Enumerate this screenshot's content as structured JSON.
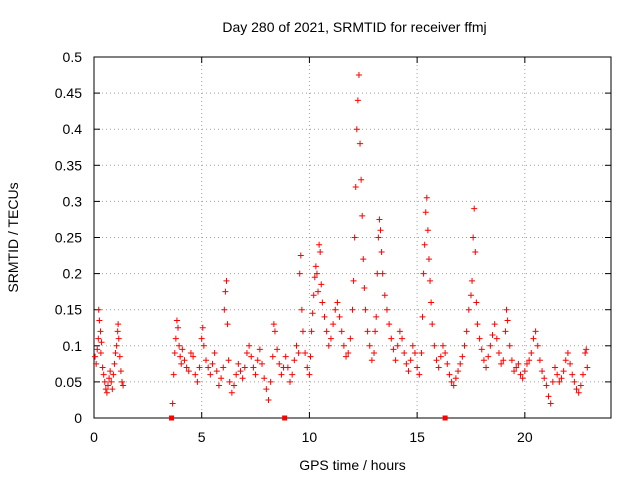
{
  "chart_data": {
    "type": "scatter",
    "title": "Day 280 of 2021, SRMTID for receiver ffmj",
    "xlabel": "GPS time / hours",
    "ylabel": "SRMTID / TECUs",
    "xlim": [
      0,
      24
    ],
    "ylim": [
      0,
      0.5
    ],
    "xticks": [
      0,
      5,
      10,
      15,
      20
    ],
    "yticks": [
      0,
      0.05,
      0.1,
      0.15,
      0.2,
      0.25,
      0.3,
      0.35,
      0.4,
      0.45,
      0.5
    ],
    "grid": true,
    "marker": "plus",
    "color": "#ff0000",
    "series": [
      {
        "name": "SRMTID",
        "points": [
          [
            0.05,
            0.085
          ],
          [
            0.1,
            0.075
          ],
          [
            0.15,
            0.095
          ],
          [
            0.2,
            0.11
          ],
          [
            0.22,
            0.15
          ],
          [
            0.25,
            0.135
          ],
          [
            0.3,
            0.12
          ],
          [
            0.32,
            0.09
          ],
          [
            0.35,
            0.105
          ],
          [
            0.4,
            0.07
          ],
          [
            0.45,
            0.06
          ],
          [
            0.5,
            0.05
          ],
          [
            0.55,
            0.04
          ],
          [
            0.6,
            0.035
          ],
          [
            0.65,
            0.045
          ],
          [
            0.7,
            0.055
          ],
          [
            0.75,
            0.065
          ],
          [
            0.8,
            0.05
          ],
          [
            0.85,
            0.04
          ],
          [
            0.9,
            0.06
          ],
          [
            0.95,
            0.075
          ],
          [
            1.0,
            0.09
          ],
          [
            1.05,
            0.1
          ],
          [
            1.1,
            0.12
          ],
          [
            1.12,
            0.13
          ],
          [
            1.15,
            0.11
          ],
          [
            1.2,
            0.085
          ],
          [
            1.25,
            0.065
          ],
          [
            1.3,
            0.05
          ],
          [
            1.35,
            0.045
          ],
          [
            3.65,
            0.02
          ],
          [
            3.7,
            0.06
          ],
          [
            3.75,
            0.09
          ],
          [
            3.8,
            0.11
          ],
          [
            3.85,
            0.135
          ],
          [
            3.9,
            0.125
          ],
          [
            3.95,
            0.1
          ],
          [
            4.0,
            0.085
          ],
          [
            4.05,
            0.075
          ],
          [
            4.1,
            0.095
          ],
          [
            4.2,
            0.08
          ],
          [
            4.3,
            0.07
          ],
          [
            4.4,
            0.065
          ],
          [
            4.5,
            0.09
          ],
          [
            4.6,
            0.085
          ],
          [
            4.7,
            0.06
          ],
          [
            4.8,
            0.05
          ],
          [
            4.9,
            0.07
          ],
          [
            5.0,
            0.11
          ],
          [
            5.05,
            0.125
          ],
          [
            5.1,
            0.1
          ],
          [
            5.2,
            0.08
          ],
          [
            5.3,
            0.07
          ],
          [
            5.4,
            0.06
          ],
          [
            5.5,
            0.075
          ],
          [
            5.6,
            0.09
          ],
          [
            5.7,
            0.065
          ],
          [
            5.8,
            0.045
          ],
          [
            5.9,
            0.055
          ],
          [
            6.0,
            0.07
          ],
          [
            6.05,
            0.15
          ],
          [
            6.1,
            0.175
          ],
          [
            6.15,
            0.19
          ],
          [
            6.2,
            0.13
          ],
          [
            6.25,
            0.08
          ],
          [
            6.3,
            0.05
          ],
          [
            6.4,
            0.035
          ],
          [
            6.5,
            0.045
          ],
          [
            6.6,
            0.06
          ],
          [
            6.7,
            0.075
          ],
          [
            6.8,
            0.065
          ],
          [
            6.9,
            0.055
          ],
          [
            7.0,
            0.07
          ],
          [
            7.1,
            0.09
          ],
          [
            7.2,
            0.1
          ],
          [
            7.3,
            0.085
          ],
          [
            7.4,
            0.07
          ],
          [
            7.5,
            0.06
          ],
          [
            7.6,
            0.08
          ],
          [
            7.7,
            0.095
          ],
          [
            7.8,
            0.075
          ],
          [
            7.9,
            0.055
          ],
          [
            8.0,
            0.04
          ],
          [
            8.1,
            0.025
          ],
          [
            8.2,
            0.05
          ],
          [
            8.3,
            0.085
          ],
          [
            8.35,
            0.13
          ],
          [
            8.4,
            0.12
          ],
          [
            8.5,
            0.095
          ],
          [
            8.6,
            0.075
          ],
          [
            8.7,
            0.06
          ],
          [
            8.8,
            0.07
          ],
          [
            8.9,
            0.085
          ],
          [
            9.0,
            0.07
          ],
          [
            9.1,
            0.05
          ],
          [
            9.2,
            0.06
          ],
          [
            9.3,
            0.08
          ],
          [
            9.4,
            0.1
          ],
          [
            9.5,
            0.09
          ],
          [
            9.55,
            0.2
          ],
          [
            9.6,
            0.225
          ],
          [
            9.65,
            0.15
          ],
          [
            9.7,
            0.12
          ],
          [
            9.8,
            0.09
          ],
          [
            9.9,
            0.07
          ],
          [
            10.0,
            0.06
          ],
          [
            10.05,
            0.085
          ],
          [
            10.1,
            0.12
          ],
          [
            10.15,
            0.145
          ],
          [
            10.2,
            0.17
          ],
          [
            10.25,
            0.195
          ],
          [
            10.3,
            0.21
          ],
          [
            10.35,
            0.2
          ],
          [
            10.4,
            0.175
          ],
          [
            10.45,
            0.24
          ],
          [
            10.5,
            0.23
          ],
          [
            10.55,
            0.185
          ],
          [
            10.6,
            0.16
          ],
          [
            10.7,
            0.14
          ],
          [
            10.8,
            0.12
          ],
          [
            10.9,
            0.1
          ],
          [
            11.0,
            0.11
          ],
          [
            11.1,
            0.13
          ],
          [
            11.2,
            0.15
          ],
          [
            11.3,
            0.16
          ],
          [
            11.4,
            0.14
          ],
          [
            11.5,
            0.12
          ],
          [
            11.6,
            0.1
          ],
          [
            11.7,
            0.085
          ],
          [
            11.8,
            0.09
          ],
          [
            11.9,
            0.11
          ],
          [
            12.0,
            0.15
          ],
          [
            12.05,
            0.19
          ],
          [
            12.1,
            0.25
          ],
          [
            12.15,
            0.32
          ],
          [
            12.2,
            0.4
          ],
          [
            12.25,
            0.44
          ],
          [
            12.3,
            0.475
          ],
          [
            12.35,
            0.38
          ],
          [
            12.4,
            0.33
          ],
          [
            12.45,
            0.28
          ],
          [
            12.5,
            0.22
          ],
          [
            12.55,
            0.18
          ],
          [
            12.6,
            0.15
          ],
          [
            12.7,
            0.12
          ],
          [
            12.8,
            0.1
          ],
          [
            12.9,
            0.08
          ],
          [
            13.0,
            0.09
          ],
          [
            13.05,
            0.12
          ],
          [
            13.1,
            0.14
          ],
          [
            13.15,
            0.2
          ],
          [
            13.2,
            0.25
          ],
          [
            13.25,
            0.275
          ],
          [
            13.3,
            0.26
          ],
          [
            13.35,
            0.23
          ],
          [
            13.4,
            0.2
          ],
          [
            13.5,
            0.17
          ],
          [
            13.6,
            0.15
          ],
          [
            13.7,
            0.13
          ],
          [
            13.8,
            0.11
          ],
          [
            13.9,
            0.095
          ],
          [
            14.0,
            0.08
          ],
          [
            14.1,
            0.1
          ],
          [
            14.2,
            0.12
          ],
          [
            14.3,
            0.11
          ],
          [
            14.4,
            0.09
          ],
          [
            14.5,
            0.075
          ],
          [
            14.6,
            0.065
          ],
          [
            14.7,
            0.08
          ],
          [
            14.8,
            0.1
          ],
          [
            14.9,
            0.09
          ],
          [
            15.0,
            0.07
          ],
          [
            15.1,
            0.06
          ],
          [
            15.2,
            0.09
          ],
          [
            15.25,
            0.14
          ],
          [
            15.3,
            0.2
          ],
          [
            15.35,
            0.24
          ],
          [
            15.4,
            0.285
          ],
          [
            15.45,
            0.305
          ],
          [
            15.5,
            0.26
          ],
          [
            15.55,
            0.22
          ],
          [
            15.6,
            0.19
          ],
          [
            15.65,
            0.16
          ],
          [
            15.7,
            0.13
          ],
          [
            15.8,
            0.1
          ],
          [
            15.9,
            0.08
          ],
          [
            16.0,
            0.07
          ],
          [
            16.1,
            0.085
          ],
          [
            16.2,
            0.1
          ],
          [
            16.3,
            0.09
          ],
          [
            16.4,
            0.075
          ],
          [
            16.5,
            0.06
          ],
          [
            16.6,
            0.05
          ],
          [
            16.7,
            0.045
          ],
          [
            16.8,
            0.055
          ],
          [
            16.9,
            0.065
          ],
          [
            17.0,
            0.075
          ],
          [
            17.1,
            0.085
          ],
          [
            17.2,
            0.1
          ],
          [
            17.3,
            0.12
          ],
          [
            17.4,
            0.15
          ],
          [
            17.5,
            0.17
          ],
          [
            17.55,
            0.19
          ],
          [
            17.6,
            0.25
          ],
          [
            17.65,
            0.29
          ],
          [
            17.7,
            0.23
          ],
          [
            17.75,
            0.16
          ],
          [
            17.8,
            0.13
          ],
          [
            17.9,
            0.11
          ],
          [
            18.0,
            0.095
          ],
          [
            18.1,
            0.08
          ],
          [
            18.2,
            0.07
          ],
          [
            18.3,
            0.085
          ],
          [
            18.4,
            0.1
          ],
          [
            18.5,
            0.115
          ],
          [
            18.6,
            0.13
          ],
          [
            18.7,
            0.11
          ],
          [
            18.8,
            0.09
          ],
          [
            18.9,
            0.075
          ],
          [
            19.0,
            0.08
          ],
          [
            19.1,
            0.12
          ],
          [
            19.15,
            0.15
          ],
          [
            19.2,
            0.135
          ],
          [
            19.3,
            0.1
          ],
          [
            19.4,
            0.08
          ],
          [
            19.5,
            0.065
          ],
          [
            19.6,
            0.07
          ],
          [
            19.7,
            0.075
          ],
          [
            19.8,
            0.06
          ],
          [
            19.9,
            0.055
          ],
          [
            20.0,
            0.065
          ],
          [
            20.1,
            0.075
          ],
          [
            20.2,
            0.08
          ],
          [
            20.3,
            0.09
          ],
          [
            20.4,
            0.11
          ],
          [
            20.5,
            0.12
          ],
          [
            20.6,
            0.1
          ],
          [
            20.7,
            0.08
          ],
          [
            20.8,
            0.065
          ],
          [
            20.9,
            0.055
          ],
          [
            21.0,
            0.045
          ],
          [
            21.1,
            0.03
          ],
          [
            21.2,
            0.02
          ],
          [
            21.3,
            0.05
          ],
          [
            21.4,
            0.07
          ],
          [
            21.5,
            0.06
          ],
          [
            21.6,
            0.05
          ],
          [
            21.7,
            0.055
          ],
          [
            21.8,
            0.065
          ],
          [
            21.9,
            0.08
          ],
          [
            22.0,
            0.09
          ],
          [
            22.1,
            0.075
          ],
          [
            22.2,
            0.06
          ],
          [
            22.3,
            0.05
          ],
          [
            22.4,
            0.04
          ],
          [
            22.5,
            0.035
          ],
          [
            22.6,
            0.045
          ],
          [
            22.7,
            0.06
          ],
          [
            22.8,
            0.09
          ],
          [
            22.85,
            0.095
          ],
          [
            22.9,
            0.07
          ]
        ]
      }
    ],
    "zero_markers": [
      3.6,
      8.85,
      16.3
    ]
  }
}
